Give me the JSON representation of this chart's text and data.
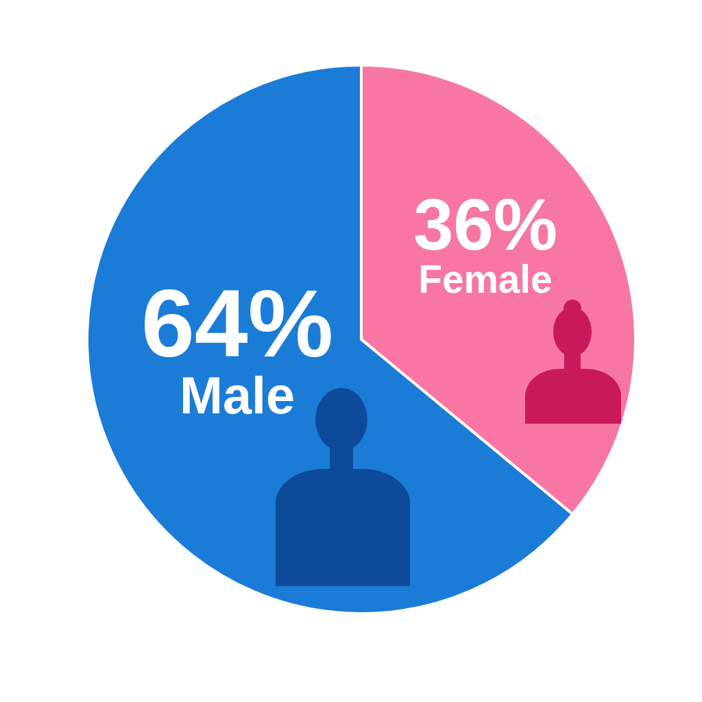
{
  "chart_data": {
    "type": "pie",
    "categories": [
      "Female",
      "Male"
    ],
    "values": [
      36,
      64
    ],
    "colors": [
      "#f776a4",
      "#1b7cd8"
    ],
    "value_labels": [
      "36%",
      "64%"
    ]
  }
}
